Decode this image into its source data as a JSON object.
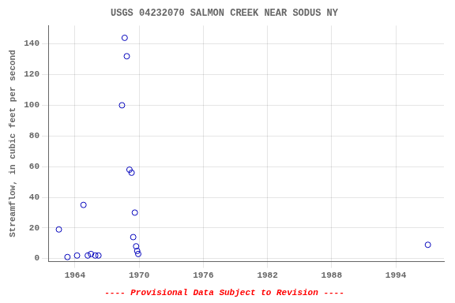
{
  "chart_data": {
    "type": "scatter",
    "title": "USGS 04232070 SALMON CREEK NEAR SODUS NY",
    "y_label": "Streamflow, in cubic feet per second",
    "annotations": [
      {
        "text": "---- Provisional Data Subject to Revision ----",
        "color": "#ff0000"
      }
    ],
    "x": [
      1962.5,
      1963.3,
      1964.2,
      1964.8,
      1965.2,
      1965.5,
      1965.9,
      1966.2,
      1968.4,
      1968.65,
      1968.85,
      1969.1,
      1969.3,
      1969.45,
      1969.6,
      1969.72,
      1969.82,
      1969.92,
      1997.0
    ],
    "values": [
      19,
      1,
      2,
      35,
      2,
      3,
      2,
      2,
      100,
      144,
      132,
      58,
      56,
      14,
      30,
      8,
      5,
      3,
      9
    ],
    "color": "#0000bb",
    "marker": "circle",
    "xlim": [
      1961.5,
      1998.5
    ],
    "ylim": [
      -2,
      152
    ],
    "xticks": [
      1964,
      1970,
      1976,
      1982,
      1988,
      1994
    ],
    "yticks": [
      0,
      20,
      40,
      60,
      80,
      100,
      120,
      140
    ],
    "grid": true
  }
}
